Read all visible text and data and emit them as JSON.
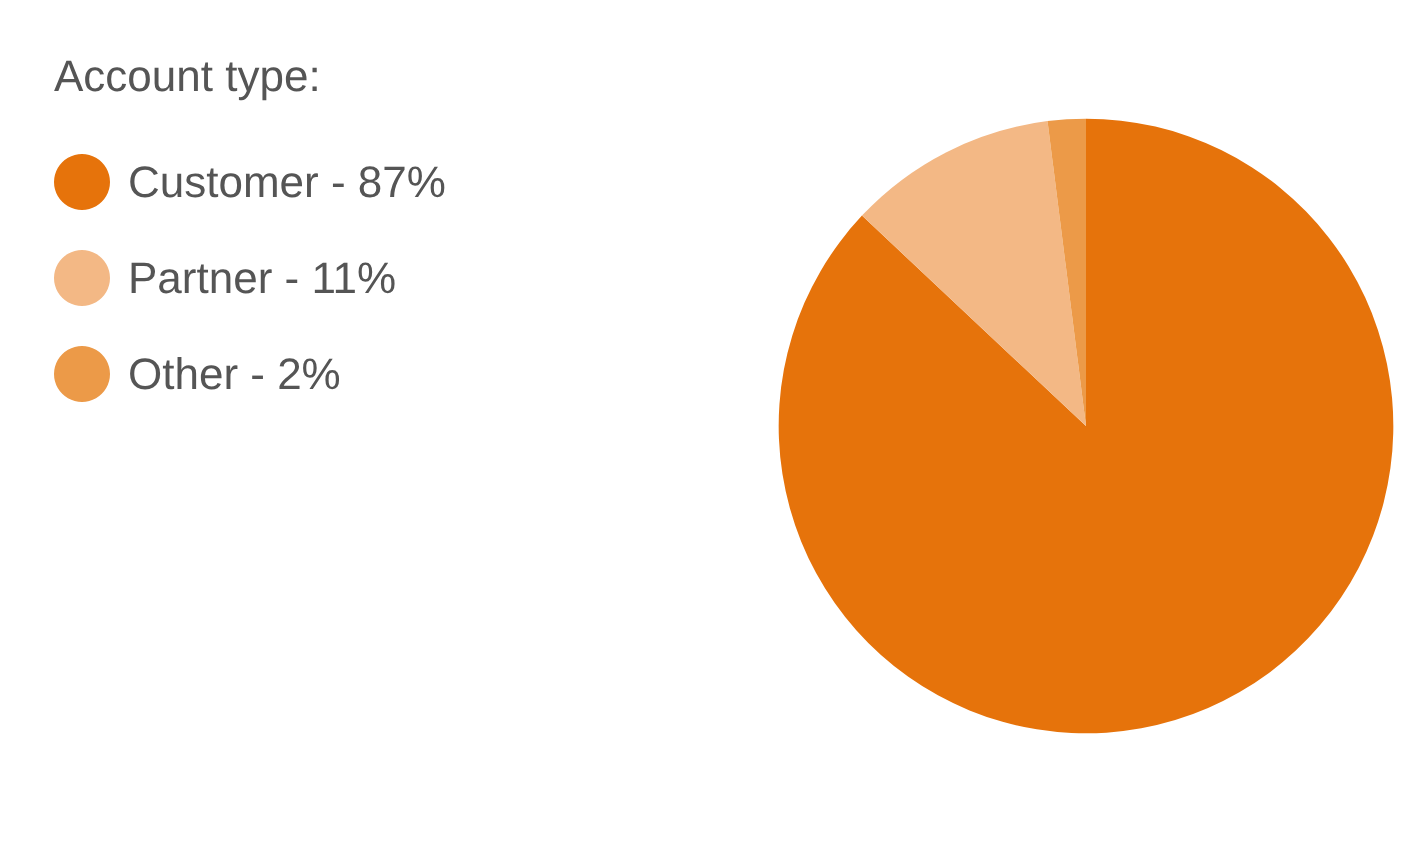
{
  "chart_data": {
    "type": "pie",
    "legend_title": "Account type:",
    "legend": "top left",
    "categories": [
      "Customer - 87%",
      "Partner - 11%",
      "Other - 2%"
    ],
    "values": [
      87,
      11,
      2
    ],
    "colors": [
      "#e6730b",
      "#f3b885",
      "#ec9a48"
    ]
  }
}
